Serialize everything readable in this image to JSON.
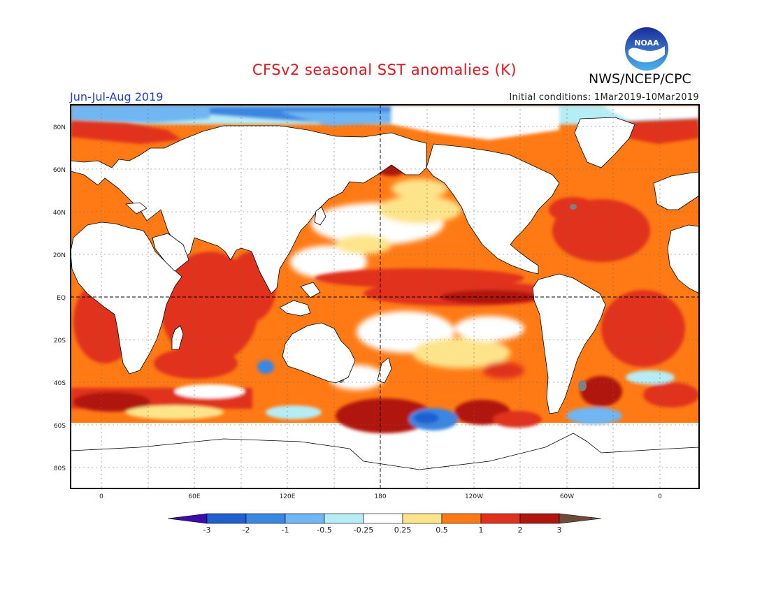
{
  "header": {
    "title": "CFSv2 seasonal SST anomalies (K)",
    "season": "Jun-Jul-Aug 2019",
    "initial_conditions": "Initial conditions: 1Mar2019-10Mar2019",
    "agency": "NWS/NCEP/CPC",
    "logo_text": "NOAA"
  },
  "axes": {
    "lat_labels": [
      "80N",
      "60N",
      "40N",
      "20N",
      "EQ",
      "20S",
      "40S",
      "60S",
      "80S"
    ],
    "lon_labels": [
      "0",
      "60E",
      "120E",
      "180",
      "120W",
      "60W",
      "0"
    ]
  },
  "colorbar": {
    "labels": [
      "-3",
      "-2",
      "-1",
      "-0.5",
      "-0.25",
      "0.25",
      "0.5",
      "1",
      "2",
      "3"
    ],
    "colors": [
      "#3a0ea8",
      "#1f5fd0",
      "#3a86e3",
      "#70b6f2",
      "#b6ecf5",
      "#ffffff",
      "#fde48a",
      "#ff7a14",
      "#e0301e",
      "#b0150f",
      "#6e4a3a"
    ]
  },
  "legend_colors": {
    "land": "#ffffff",
    "coastline": "#000000",
    "equator_and_dateline": "#000000"
  }
}
